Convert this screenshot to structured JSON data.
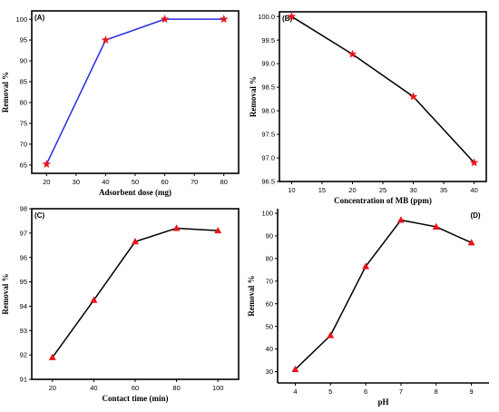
{
  "colors": {
    "marker": "#e8141b",
    "line_blue": "#2a2ae0",
    "line_black": "#000000"
  },
  "chart_data": [
    {
      "type": "line",
      "panel_label": "(A)",
      "xlabel": "Adsorbent dose (mg)",
      "ylabel": "Removal %",
      "x": [
        20,
        40,
        60,
        80
      ],
      "series": [
        {
          "values": [
            65.2,
            95.0,
            100.0,
            100.0
          ],
          "marker": "star",
          "line_color": "line_blue"
        }
      ],
      "xlim": [
        15,
        85
      ],
      "ylim": [
        63,
        102
      ],
      "xticks": [
        20,
        30,
        40,
        50,
        60,
        70,
        80
      ],
      "yticks": [
        65,
        70,
        75,
        80,
        85,
        90,
        95,
        100
      ],
      "ytick_decimals": 0
    },
    {
      "type": "line",
      "panel_label": "(B)",
      "xlabel": "Concentration of MB (ppm)",
      "ylabel": "Removal %",
      "x": [
        10,
        20,
        30,
        40
      ],
      "series": [
        {
          "values": [
            100.0,
            99.2,
            98.3,
            96.9
          ],
          "marker": "star",
          "line_color": "line_black"
        }
      ],
      "xlim": [
        8,
        42
      ],
      "ylim": [
        96.5,
        100.1
      ],
      "xticks": [
        10,
        15,
        20,
        25,
        30,
        35,
        40
      ],
      "yticks": [
        96.5,
        97.0,
        97.5,
        98.0,
        98.5,
        99.0,
        99.5,
        100.0
      ],
      "ytick_decimals": 1
    },
    {
      "type": "line",
      "panel_label": "(C)",
      "xlabel": "Contact time (min)",
      "ylabel": "Removal %",
      "x": [
        20,
        40,
        60,
        80,
        100
      ],
      "series": [
        {
          "values": [
            91.9,
            94.25,
            96.65,
            97.2,
            97.1
          ],
          "marker": "triangle",
          "line_color": "line_black"
        }
      ],
      "xlim": [
        10,
        110
      ],
      "ylim": [
        91,
        98
      ],
      "xticks": [
        20,
        40,
        60,
        80,
        100
      ],
      "yticks": [
        91,
        92,
        93,
        94,
        95,
        96,
        97,
        98
      ],
      "ytick_decimals": 0
    },
    {
      "type": "line",
      "panel_label": "(D)",
      "xlabel": "pH",
      "ylabel": "Removal %",
      "x": [
        4,
        5,
        6,
        7,
        8,
        9
      ],
      "series": [
        {
          "values": [
            31,
            46,
            76.5,
            97,
            94,
            87
          ],
          "marker": "triangle",
          "line_color": "line_black"
        }
      ],
      "xlim": [
        3.5,
        9.5
      ],
      "ylim": [
        25,
        102
      ],
      "xticks": [
        4,
        5,
        6,
        7,
        8,
        9
      ],
      "yticks": [
        30,
        40,
        50,
        60,
        70,
        80,
        90,
        100
      ],
      "ytick_decimals": 0
    }
  ]
}
